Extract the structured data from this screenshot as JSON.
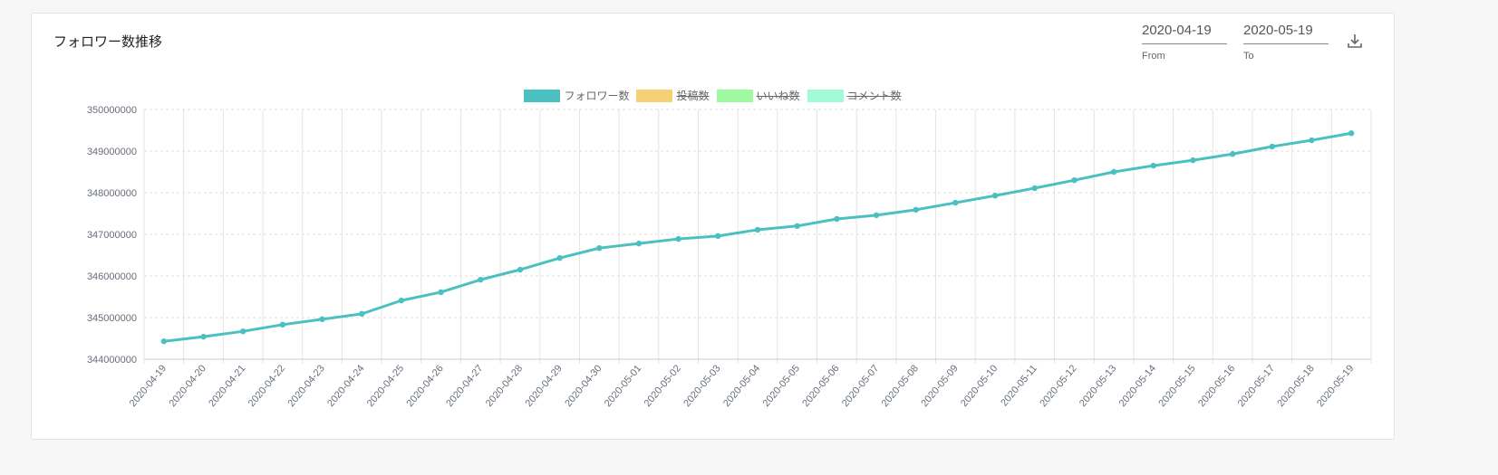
{
  "card": {
    "title": "フォロワー数推移"
  },
  "date_range": {
    "from_value": "2020-04-19",
    "from_label": "From",
    "to_value": "2020-05-19",
    "to_label": "To",
    "download_icon": "download-icon"
  },
  "chart_data": {
    "type": "line",
    "title": "",
    "xlabel": "",
    "ylabel": "",
    "ylim": [
      344000000,
      350000000
    ],
    "yticks": [
      "350000000",
      "349000000",
      "348000000",
      "347000000",
      "346000000",
      "345000000",
      "344000000"
    ],
    "grid": true,
    "legend_position": "top",
    "legend": [
      {
        "name": "フォロワー数",
        "color": "#4bc0c0",
        "hidden": false
      },
      {
        "name": "投稿数",
        "color": "#f5d176",
        "hidden": true
      },
      {
        "name": "いいね数",
        "color": "#9ffa9f",
        "hidden": true
      },
      {
        "name": "コメント数",
        "color": "#a0fbd6",
        "hidden": true
      }
    ],
    "categories": [
      "2020-04-19",
      "2020-04-20",
      "2020-04-21",
      "2020-04-22",
      "2020-04-23",
      "2020-04-24",
      "2020-04-25",
      "2020-04-26",
      "2020-04-27",
      "2020-04-28",
      "2020-04-29",
      "2020-04-30",
      "2020-05-01",
      "2020-05-02",
      "2020-05-03",
      "2020-05-04",
      "2020-05-05",
      "2020-05-06",
      "2020-05-07",
      "2020-05-08",
      "2020-05-09",
      "2020-05-10",
      "2020-05-11",
      "2020-05-12",
      "2020-05-13",
      "2020-05-14",
      "2020-05-15",
      "2020-05-16",
      "2020-05-17",
      "2020-05-18",
      "2020-05-19"
    ],
    "series": [
      {
        "name": "フォロワー数",
        "color": "#4bc0c0",
        "values": [
          344430000,
          344540000,
          344670000,
          344830000,
          344960000,
          345090000,
          345410000,
          345610000,
          345910000,
          346150000,
          346430000,
          346670000,
          346780000,
          346890000,
          346960000,
          347110000,
          347200000,
          347370000,
          347460000,
          347590000,
          347760000,
          347930000,
          348110000,
          348300000,
          348500000,
          348650000,
          348780000,
          348930000,
          349110000,
          349260000,
          349430000
        ]
      }
    ]
  }
}
